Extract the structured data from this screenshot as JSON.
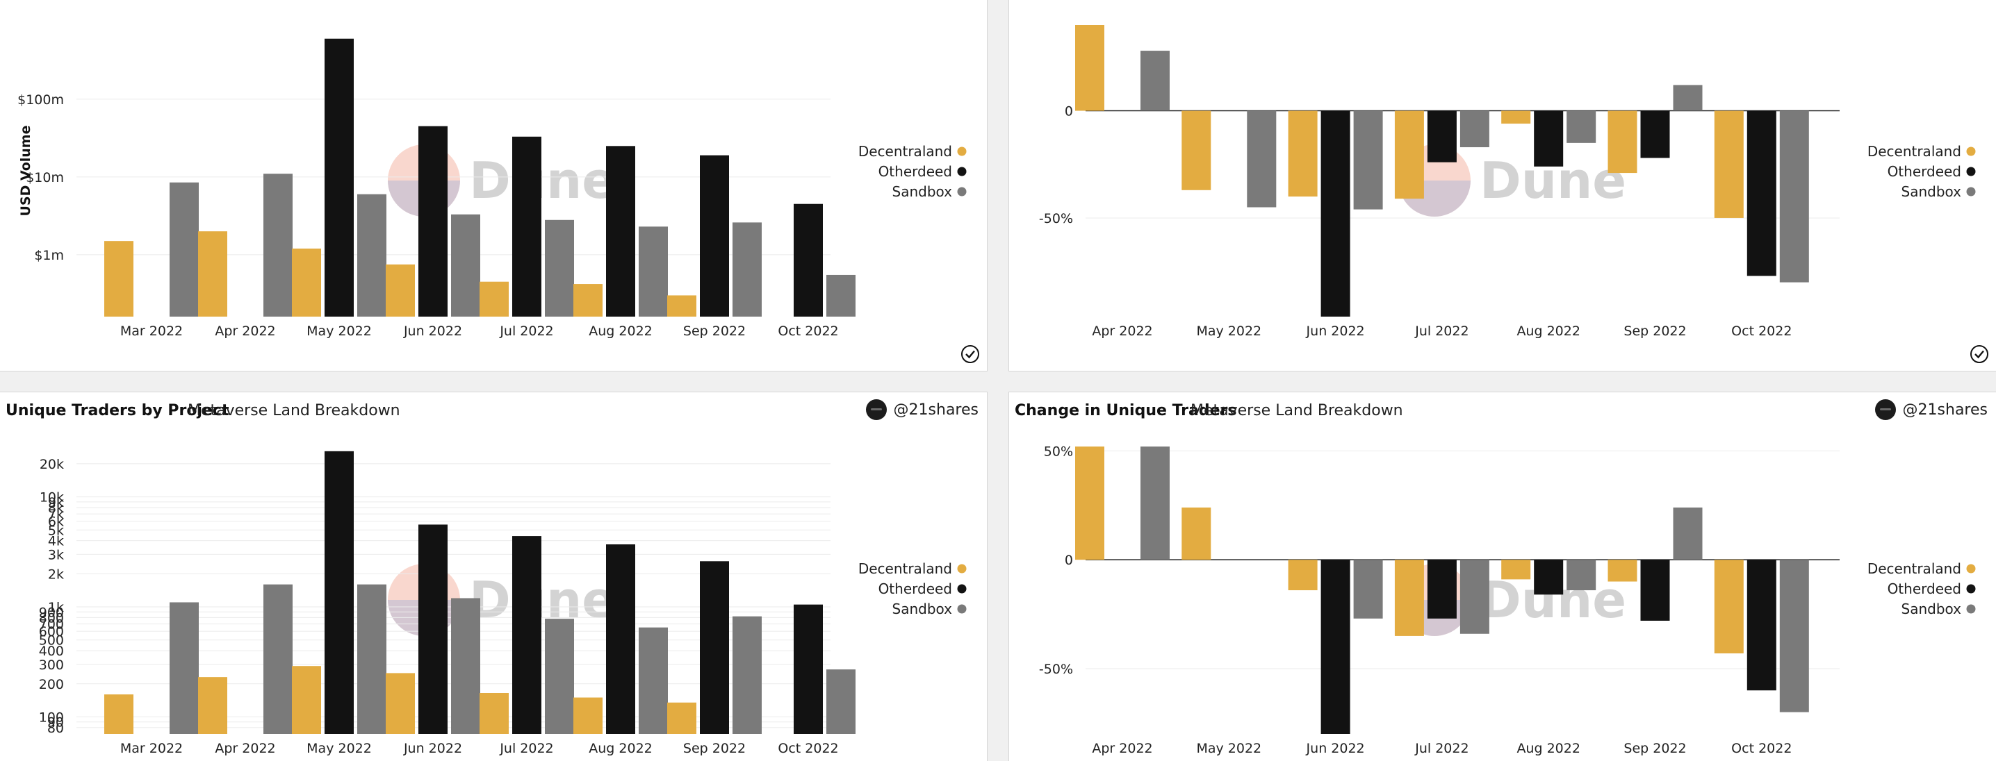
{
  "colors": {
    "Decentraland": "#e3ac41",
    "Otherdeed": "#121212",
    "Sandbox": "#7a7a7a",
    "grid": "#ebebeb",
    "axis": "#555555"
  },
  "watermark": "Dune",
  "panels": {
    "bottom_left": {
      "title": "Unique Traders by Project",
      "subtitle": "Metaverse Land Breakdown",
      "author": "@21shares"
    },
    "bottom_right": {
      "title": "Change in Unique Traders",
      "subtitle": "Metaverse Land Breakdown",
      "author": "@21shares"
    }
  },
  "chart_data": [
    {
      "id": "volume",
      "type": "bar",
      "scale": "log",
      "ylabel": "USD Volume",
      "ylim": [
        160000,
        900000000
      ],
      "yticks": [
        {
          "v": 1000000,
          "label": "$1m"
        },
        {
          "v": 10000000,
          "label": "$10m"
        },
        {
          "v": 100000000,
          "label": "$100m"
        }
      ],
      "categories": [
        "Mar 2022",
        "Apr 2022",
        "May 2022",
        "Jun 2022",
        "Jul 2022",
        "Aug 2022",
        "Sep 2022",
        "Oct 2022"
      ],
      "series": [
        {
          "name": "Decentraland",
          "values": [
            1500000,
            2000000,
            1200000,
            750000,
            450000,
            420000,
            300000,
            null
          ]
        },
        {
          "name": "Otherdeed",
          "values": [
            null,
            null,
            600000000,
            45000000,
            33000000,
            25000000,
            19000000,
            4500000
          ]
        },
        {
          "name": "Sandbox",
          "values": [
            8500000,
            11000000,
            6000000,
            3300000,
            2800000,
            2300000,
            2600000,
            550000
          ]
        }
      ],
      "legend": "right"
    },
    {
      "id": "volume_change",
      "type": "bar",
      "scale": "linear",
      "ylim": [
        -96,
        40
      ],
      "yticks": [
        {
          "v": 0,
          "label": "0"
        },
        {
          "v": -50,
          "label": "-50%"
        }
      ],
      "categories": [
        "Apr 2022",
        "May 2022",
        "Jun 2022",
        "Jul 2022",
        "Aug 2022",
        "Sep 2022",
        "Oct 2022"
      ],
      "series": [
        {
          "name": "Decentraland",
          "values": [
            40,
            -37,
            -40,
            -41,
            -6,
            -29,
            -50
          ]
        },
        {
          "name": "Otherdeed",
          "values": [
            null,
            null,
            -96,
            -24,
            -26,
            -22,
            -77
          ]
        },
        {
          "name": "Sandbox",
          "values": [
            28,
            -45,
            -46,
            -17,
            -15,
            12,
            -80
          ]
        }
      ],
      "legend": "right"
    },
    {
      "id": "traders",
      "type": "bar",
      "scale": "log",
      "ylim": [
        70,
        30000
      ],
      "yticks": [
        {
          "v": 80,
          "label": "80"
        },
        {
          "v": 90,
          "label": "90"
        },
        {
          "v": 100,
          "label": "100"
        },
        {
          "v": 200,
          "label": "200"
        },
        {
          "v": 300,
          "label": "300"
        },
        {
          "v": 400,
          "label": "400"
        },
        {
          "v": 500,
          "label": "500"
        },
        {
          "v": 600,
          "label": "600"
        },
        {
          "v": 700,
          "label": "700"
        },
        {
          "v": 800,
          "label": "800"
        },
        {
          "v": 900,
          "label": "900"
        },
        {
          "v": 1000,
          "label": "1k"
        },
        {
          "v": 2000,
          "label": "2k"
        },
        {
          "v": 3000,
          "label": "3k"
        },
        {
          "v": 4000,
          "label": "4k"
        },
        {
          "v": 5000,
          "label": "5k"
        },
        {
          "v": 6000,
          "label": "6k"
        },
        {
          "v": 7000,
          "label": "7k"
        },
        {
          "v": 8000,
          "label": "8k"
        },
        {
          "v": 9000,
          "label": "9k"
        },
        {
          "v": 10000,
          "label": "10k"
        },
        {
          "v": 20000,
          "label": "20k"
        }
      ],
      "categories": [
        "Mar 2022",
        "Apr 2022",
        "May 2022",
        "Jun 2022",
        "Jul 2022",
        "Aug 2022",
        "Sep 2022",
        "Oct 2022"
      ],
      "series": [
        {
          "name": "Decentraland",
          "values": [
            160,
            230,
            290,
            250,
            165,
            150,
            135,
            null
          ]
        },
        {
          "name": "Otherdeed",
          "values": [
            null,
            null,
            26000,
            5600,
            4400,
            3700,
            2600,
            1050
          ]
        },
        {
          "name": "Sandbox",
          "values": [
            1100,
            1600,
            1600,
            1200,
            780,
            650,
            820,
            270
          ]
        }
      ],
      "legend": "right"
    },
    {
      "id": "traders_change",
      "type": "bar",
      "scale": "linear",
      "ylim": [
        -80,
        53
      ],
      "yticks": [
        {
          "v": 50,
          "label": "50%"
        },
        {
          "v": 0,
          "label": "0"
        },
        {
          "v": -50,
          "label": "-50%"
        }
      ],
      "categories": [
        "Apr 2022",
        "May 2022",
        "Jun 2022",
        "Jul 2022",
        "Aug 2022",
        "Sep 2022",
        "Oct 2022"
      ],
      "series": [
        {
          "name": "Decentraland",
          "values": [
            52,
            24,
            -14,
            -35,
            -9,
            -10,
            -43
          ]
        },
        {
          "name": "Otherdeed",
          "values": [
            null,
            null,
            -80,
            -27,
            -16,
            -28,
            -60
          ]
        },
        {
          "name": "Sandbox",
          "values": [
            52,
            null,
            -27,
            -34,
            -14,
            24,
            -70
          ]
        }
      ],
      "legend": "right"
    }
  ]
}
